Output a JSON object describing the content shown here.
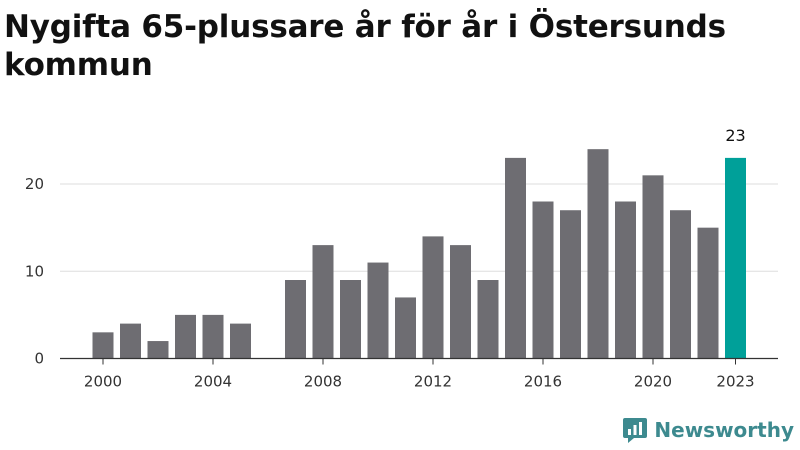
{
  "chart_data": {
    "type": "bar",
    "title": "Nygifta 65-plussare år för år i Östersunds kommun",
    "xlabel": "",
    "ylabel": "",
    "x": [
      2000,
      2001,
      2002,
      2003,
      2004,
      2005,
      2006,
      2007,
      2008,
      2009,
      2010,
      2011,
      2012,
      2013,
      2014,
      2015,
      2016,
      2017,
      2018,
      2019,
      2020,
      2021,
      2022,
      2023
    ],
    "values": [
      3,
      4,
      2,
      5,
      5,
      4,
      null,
      9,
      13,
      9,
      11,
      7,
      14,
      13,
      9,
      23,
      18,
      17,
      24,
      18,
      21,
      17,
      15,
      23
    ],
    "x_ticks": [
      "2000",
      "2004",
      "2008",
      "2012",
      "2016",
      "2020",
      "2023"
    ],
    "y_ticks": [
      0,
      10,
      20
    ],
    "ylim": [
      0,
      27
    ],
    "grid": "horizontal",
    "highlight": {
      "category": 2023,
      "label": "23"
    },
    "colors": {
      "bar": "#6e6d72",
      "highlight": "#00a099",
      "grid": "#dddddd",
      "axis": "#333333"
    }
  },
  "brand": {
    "name": "Newsworthy",
    "color": "#3d8a8f",
    "icon": "newsworthy-logo-icon"
  }
}
